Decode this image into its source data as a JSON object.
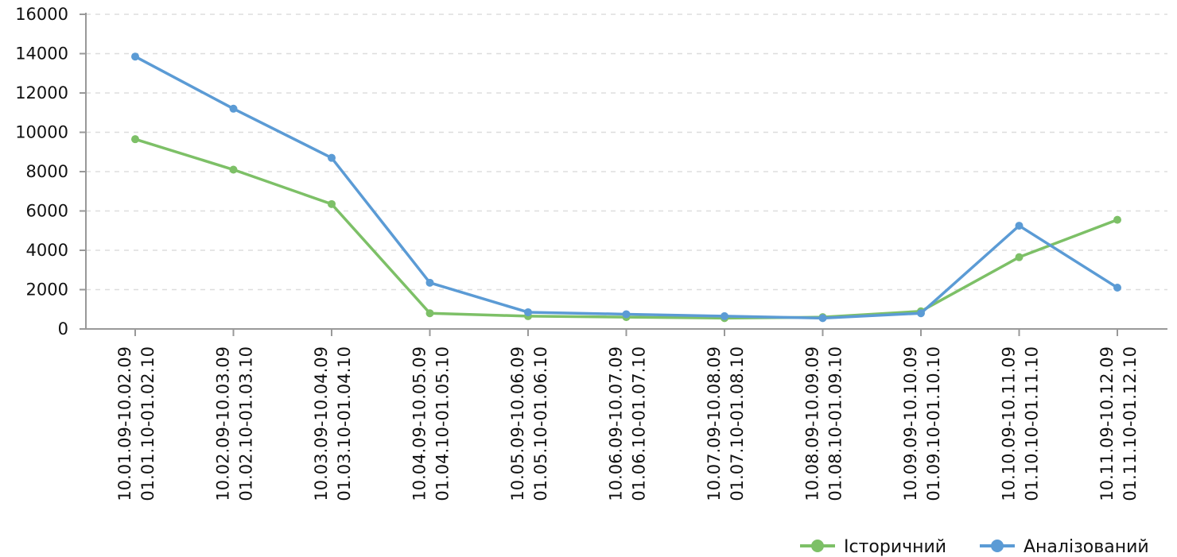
{
  "chart_data": {
    "type": "line",
    "title": "",
    "xlabel": "",
    "ylabel": "",
    "ylim": [
      0,
      16000
    ],
    "yticks": [
      "0",
      "2000",
      "4000",
      "6000",
      "8000",
      "10000",
      "12000",
      "14000",
      "16000"
    ],
    "grid": true,
    "legend_position": "bottom-right",
    "categories": [
      [
        "10.01.09-10.02.09",
        "01.01.10-01.02.10"
      ],
      [
        "10.02.09-10.03.09",
        "01.02.10-01.03.10"
      ],
      [
        "10.03.09-10.04.09",
        "01.03.10-01.04.10"
      ],
      [
        "10.04.09-10.05.09",
        "01.04.10-01.05.10"
      ],
      [
        "10.05.09-10.06.09",
        "01.05.10-01.06.10"
      ],
      [
        "10.06.09-10.07.09",
        "01.06.10-01.07.10"
      ],
      [
        "10.07.09-10.08.09",
        "01.07.10-01.08.10"
      ],
      [
        "10.08.09-10.09.09",
        "01.08.10-01.09.10"
      ],
      [
        "10.09.09-10.10.09",
        "01.09.10-01.10.10"
      ],
      [
        "10.10.09-10.11.09",
        "01.10.10-01.11.10"
      ],
      [
        "10.11.09-10.12.09",
        "01.11.10-01.12.10"
      ]
    ],
    "series": [
      {
        "name": "Історичний",
        "color": "#7dc067",
        "values": [
          9650,
          8100,
          6350,
          800,
          650,
          600,
          550,
          600,
          900,
          3650,
          5550
        ]
      },
      {
        "name": "Аналізований",
        "color": "#5b9bd5",
        "values": [
          13850,
          11200,
          8700,
          2350,
          850,
          750,
          650,
          550,
          800,
          5250,
          2100
        ]
      }
    ]
  }
}
